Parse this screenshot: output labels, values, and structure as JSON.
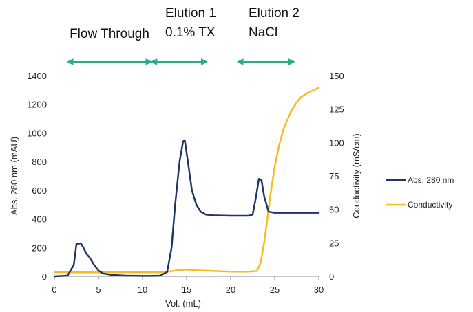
{
  "colors": {
    "abs": "#1f3566",
    "cond": "#f6bc1f",
    "arrow": "#2bab8c",
    "axis": "#888888"
  },
  "annotations": [
    {
      "lines": [
        "Flow Through"
      ],
      "x_start": 1.5,
      "x_end": 11
    },
    {
      "lines": [
        "Elution 1",
        "0.1% TX"
      ],
      "x_start": 11,
      "x_end": 17.3
    },
    {
      "lines": [
        "Elution 2",
        "NaCl"
      ],
      "x_start": 20.8,
      "x_end": 27.2
    }
  ],
  "chart_data": {
    "type": "line",
    "xlabel": "Vol. (mL)",
    "ylabel": "Abs. 280 nm (mAU)",
    "y2label": "Conductivity (mS/cm)",
    "xlim": [
      0,
      30
    ],
    "ylim": [
      0,
      1400
    ],
    "y2lim": [
      0,
      150
    ],
    "x_ticks": [
      "0",
      "5",
      "10",
      "15",
      "20",
      "25",
      "30"
    ],
    "y_ticks": [
      "0",
      "200",
      "400",
      "600",
      "800",
      "1000",
      "1200",
      "1400"
    ],
    "y2_ticks": [
      "0",
      "25",
      "50",
      "75",
      "100",
      "125",
      "150"
    ],
    "legend_position": "right",
    "series": [
      {
        "name": "Abs. 280 nm",
        "axis": "left",
        "points": [
          [
            0,
            0
          ],
          [
            1.5,
            5
          ],
          [
            2.2,
            80
          ],
          [
            2.5,
            225
          ],
          [
            3.0,
            230
          ],
          [
            3.3,
            200
          ],
          [
            3.6,
            160
          ],
          [
            4.0,
            130
          ],
          [
            4.5,
            80
          ],
          [
            5.0,
            40
          ],
          [
            5.5,
            20
          ],
          [
            6.5,
            10
          ],
          [
            8,
            5
          ],
          [
            10,
            3
          ],
          [
            11,
            3
          ],
          [
            12,
            5
          ],
          [
            12.8,
            30
          ],
          [
            13.3,
            200
          ],
          [
            13.7,
            500
          ],
          [
            14.2,
            800
          ],
          [
            14.6,
            940
          ],
          [
            14.8,
            950
          ],
          [
            15.1,
            820
          ],
          [
            15.6,
            600
          ],
          [
            16.1,
            500
          ],
          [
            16.6,
            450
          ],
          [
            17.2,
            430
          ],
          [
            18,
            425
          ],
          [
            20,
            422
          ],
          [
            22,
            422
          ],
          [
            22.5,
            430
          ],
          [
            22.9,
            560
          ],
          [
            23.2,
            680
          ],
          [
            23.5,
            670
          ],
          [
            23.8,
            560
          ],
          [
            24.3,
            450
          ],
          [
            25,
            443
          ],
          [
            27,
            443
          ],
          [
            30,
            443
          ]
        ]
      },
      {
        "name": "Conductivity",
        "axis": "right",
        "points": [
          [
            0,
            3
          ],
          [
            5,
            3
          ],
          [
            10,
            3
          ],
          [
            12,
            3
          ],
          [
            13,
            3.5
          ],
          [
            14,
            4.5
          ],
          [
            15,
            5
          ],
          [
            16,
            4.5
          ],
          [
            18,
            4
          ],
          [
            20,
            3.5
          ],
          [
            22,
            3.5
          ],
          [
            23,
            4
          ],
          [
            23.4,
            10
          ],
          [
            23.8,
            25
          ],
          [
            24.2,
            45
          ],
          [
            24.6,
            65
          ],
          [
            25,
            82
          ],
          [
            25.5,
            98
          ],
          [
            26,
            110
          ],
          [
            26.5,
            118
          ],
          [
            27,
            125
          ],
          [
            27.5,
            130
          ],
          [
            28,
            134
          ],
          [
            29,
            138
          ],
          [
            30,
            141
          ]
        ]
      }
    ]
  }
}
